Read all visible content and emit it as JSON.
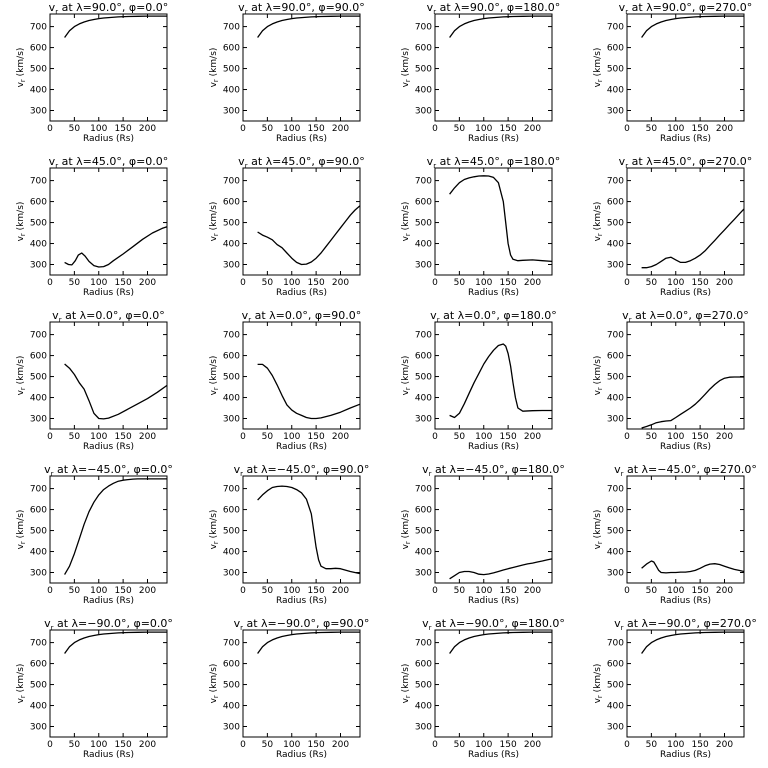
{
  "chart_data": [
    {
      "type": "line",
      "title": "v<sub>r</sub> at λ=90.0°, φ=0.0°",
      "title_parts": [
        "v",
        "r",
        " at λ=90.0°, φ=0.0°"
      ],
      "xlabel": "Radius (Rs)",
      "ylabel": "v_r (km/s)",
      "xlim": [
        0,
        240
      ],
      "ylim": [
        250,
        760
      ],
      "xticks": [
        0,
        50,
        100,
        150,
        200
      ],
      "yticks": [
        300,
        400,
        500,
        600,
        700
      ],
      "x": [
        30,
        40,
        50,
        60,
        70,
        80,
        90,
        100,
        110,
        120,
        140,
        160,
        180,
        200,
        220,
        240
      ],
      "y": [
        648,
        680,
        700,
        713,
        722,
        729,
        734,
        738,
        741,
        743,
        746,
        748,
        749,
        750,
        750,
        750
      ]
    },
    {
      "type": "line",
      "title_parts": [
        "v",
        "r",
        " at λ=90.0°, φ=90.0°"
      ],
      "xlabel": "Radius (Rs)",
      "ylabel": "v_r (km/s)",
      "xlim": [
        0,
        240
      ],
      "ylim": [
        250,
        760
      ],
      "xticks": [
        0,
        50,
        100,
        150,
        200
      ],
      "yticks": [
        300,
        400,
        500,
        600,
        700
      ],
      "x": [
        30,
        40,
        50,
        60,
        70,
        80,
        90,
        100,
        110,
        120,
        140,
        160,
        180,
        200,
        220,
        240
      ],
      "y": [
        648,
        680,
        700,
        713,
        722,
        729,
        734,
        738,
        741,
        743,
        746,
        748,
        749,
        750,
        750,
        750
      ]
    },
    {
      "type": "line",
      "title_parts": [
        "v",
        "r",
        " at λ=90.0°, φ=180.0°"
      ],
      "xlabel": "Radius (Rs)",
      "ylabel": "v_r (km/s)",
      "xlim": [
        0,
        240
      ],
      "ylim": [
        250,
        760
      ],
      "xticks": [
        0,
        50,
        100,
        150,
        200
      ],
      "yticks": [
        300,
        400,
        500,
        600,
        700
      ],
      "x": [
        30,
        40,
        50,
        60,
        70,
        80,
        90,
        100,
        110,
        120,
        140,
        160,
        180,
        200,
        220,
        240
      ],
      "y": [
        648,
        680,
        700,
        713,
        722,
        729,
        734,
        738,
        741,
        743,
        746,
        748,
        749,
        750,
        750,
        750
      ]
    },
    {
      "type": "line",
      "title_parts": [
        "v",
        "r",
        " at λ=90.0°, φ=270.0°"
      ],
      "xlabel": "Radius (Rs)",
      "ylabel": "v_r (km/s)",
      "xlim": [
        0,
        240
      ],
      "ylim": [
        250,
        760
      ],
      "xticks": [
        0,
        50,
        100,
        150,
        200
      ],
      "yticks": [
        300,
        400,
        500,
        600,
        700
      ],
      "x": [
        30,
        40,
        50,
        60,
        70,
        80,
        90,
        100,
        110,
        120,
        140,
        160,
        180,
        200,
        220,
        240
      ],
      "y": [
        648,
        680,
        700,
        713,
        722,
        729,
        734,
        738,
        741,
        743,
        746,
        748,
        749,
        750,
        750,
        750
      ]
    },
    {
      "type": "line",
      "title_parts": [
        "v",
        "r",
        " at λ=45.0°, φ=0.0°"
      ],
      "xlabel": "Radius (Rs)",
      "ylabel": "v_r (km/s)",
      "xlim": [
        0,
        240
      ],
      "ylim": [
        250,
        760
      ],
      "xticks": [
        0,
        50,
        100,
        150,
        200
      ],
      "yticks": [
        300,
        400,
        500,
        600,
        700
      ],
      "x": [
        30,
        38,
        45,
        52,
        58,
        65,
        72,
        80,
        90,
        100,
        110,
        120,
        130,
        150,
        170,
        190,
        210,
        230,
        240
      ],
      "y": [
        310,
        300,
        298,
        318,
        345,
        355,
        340,
        315,
        295,
        288,
        290,
        300,
        318,
        350,
        385,
        420,
        450,
        472,
        480
      ]
    },
    {
      "type": "line",
      "title_parts": [
        "v",
        "r",
        " at λ=45.0°, φ=90.0°"
      ],
      "xlabel": "Radius (Rs)",
      "ylabel": "v_r (km/s)",
      "xlim": [
        0,
        240
      ],
      "ylim": [
        250,
        760
      ],
      "xticks": [
        0,
        50,
        100,
        150,
        200
      ],
      "yticks": [
        300,
        400,
        500,
        600,
        700
      ],
      "x": [
        30,
        40,
        50,
        60,
        70,
        80,
        90,
        100,
        110,
        120,
        130,
        140,
        150,
        160,
        170,
        180,
        190,
        200,
        210,
        220,
        230,
        240
      ],
      "y": [
        455,
        440,
        430,
        418,
        395,
        380,
        355,
        330,
        310,
        300,
        302,
        312,
        330,
        355,
        385,
        415,
        445,
        475,
        505,
        535,
        560,
        580
      ]
    },
    {
      "type": "line",
      "title_parts": [
        "v",
        "r",
        " at λ=45.0°, φ=180.0°"
      ],
      "xlabel": "Radius (Rs)",
      "ylabel": "v_r (km/s)",
      "xlim": [
        0,
        240
      ],
      "ylim": [
        250,
        760
      ],
      "xticks": [
        0,
        50,
        100,
        150,
        200
      ],
      "yticks": [
        300,
        400,
        500,
        600,
        700
      ],
      "x": [
        30,
        40,
        50,
        60,
        70,
        80,
        90,
        100,
        110,
        120,
        130,
        140,
        145,
        150,
        155,
        160,
        170,
        180,
        200,
        220,
        240
      ],
      "y": [
        635,
        665,
        690,
        705,
        713,
        718,
        722,
        723,
        722,
        715,
        690,
        600,
        500,
        400,
        345,
        325,
        318,
        320,
        322,
        318,
        315
      ]
    },
    {
      "type": "line",
      "title_parts": [
        "v",
        "r",
        " at λ=45.0°, φ=270.0°"
      ],
      "xlabel": "Radius (Rs)",
      "ylabel": "v_r (km/s)",
      "xlim": [
        0,
        240
      ],
      "ylim": [
        250,
        760
      ],
      "xticks": [
        0,
        50,
        100,
        150,
        200
      ],
      "yticks": [
        300,
        400,
        500,
        600,
        700
      ],
      "x": [
        30,
        40,
        50,
        60,
        70,
        80,
        90,
        100,
        110,
        120,
        130,
        140,
        150,
        160,
        170,
        180,
        190,
        200,
        210,
        220,
        230,
        240
      ],
      "y": [
        285,
        285,
        290,
        300,
        315,
        330,
        335,
        322,
        310,
        310,
        318,
        330,
        345,
        365,
        390,
        415,
        440,
        465,
        490,
        515,
        540,
        565
      ]
    },
    {
      "type": "line",
      "title_parts": [
        "v",
        "r",
        " at λ=0.0°, φ=0.0°"
      ],
      "xlabel": "Radius (Rs)",
      "ylabel": "v_r (km/s)",
      "xlim": [
        0,
        240
      ],
      "ylim": [
        250,
        760
      ],
      "xticks": [
        0,
        50,
        100,
        150,
        200
      ],
      "yticks": [
        300,
        400,
        500,
        600,
        700
      ],
      "x": [
        30,
        40,
        50,
        60,
        70,
        80,
        90,
        100,
        110,
        120,
        140,
        160,
        180,
        200,
        220,
        240
      ],
      "y": [
        560,
        540,
        510,
        470,
        440,
        385,
        325,
        300,
        298,
        302,
        320,
        345,
        370,
        395,
        425,
        458
      ]
    },
    {
      "type": "line",
      "title_parts": [
        "v",
        "r",
        " at λ=0.0°, φ=90.0°"
      ],
      "xlabel": "Radius (Rs)",
      "ylabel": "v_r (km/s)",
      "xlim": [
        0,
        240
      ],
      "ylim": [
        250,
        760
      ],
      "xticks": [
        0,
        50,
        100,
        150,
        200
      ],
      "yticks": [
        300,
        400,
        500,
        600,
        700
      ],
      "x": [
        30,
        40,
        50,
        60,
        70,
        80,
        90,
        100,
        110,
        120,
        130,
        140,
        150,
        160,
        180,
        200,
        220,
        240
      ],
      "y": [
        558,
        558,
        540,
        505,
        460,
        410,
        365,
        340,
        325,
        315,
        305,
        300,
        300,
        303,
        315,
        330,
        350,
        368
      ]
    },
    {
      "type": "line",
      "title_parts": [
        "v",
        "r",
        " at λ=0.0°, φ=180.0°"
      ],
      "xlabel": "Radius (Rs)",
      "ylabel": "v_r (km/s)",
      "xlim": [
        0,
        240
      ],
      "ylim": [
        250,
        760
      ],
      "xticks": [
        0,
        50,
        100,
        150,
        200
      ],
      "yticks": [
        300,
        400,
        500,
        600,
        700
      ],
      "x": [
        30,
        40,
        50,
        60,
        70,
        80,
        90,
        100,
        110,
        120,
        130,
        140,
        145,
        150,
        155,
        160,
        165,
        170,
        180,
        200,
        220,
        240
      ],
      "y": [
        315,
        305,
        325,
        370,
        420,
        470,
        515,
        560,
        595,
        625,
        648,
        655,
        645,
        610,
        550,
        470,
        400,
        350,
        335,
        337,
        338,
        338
      ]
    },
    {
      "type": "line",
      "title_parts": [
        "v",
        "r",
        " at λ=0.0°, φ=270.0°"
      ],
      "xlabel": "Radius (Rs)",
      "ylabel": "v_r (km/s)",
      "xlim": [
        0,
        240
      ],
      "ylim": [
        250,
        760
      ],
      "xticks": [
        0,
        50,
        100,
        150,
        200
      ],
      "yticks": [
        300,
        400,
        500,
        600,
        700
      ],
      "x": [
        30,
        40,
        50,
        60,
        70,
        80,
        90,
        100,
        110,
        120,
        130,
        140,
        150,
        160,
        170,
        180,
        190,
        200,
        210,
        220,
        230,
        240
      ],
      "y": [
        255,
        262,
        270,
        280,
        285,
        288,
        290,
        305,
        320,
        335,
        350,
        368,
        390,
        415,
        440,
        462,
        480,
        492,
        497,
        498,
        498,
        498
      ]
    },
    {
      "type": "line",
      "title_parts": [
        "v",
        "r",
        " at λ=−45.0°, φ=0.0°"
      ],
      "xlabel": "Radius (Rs)",
      "ylabel": "v_r (km/s)",
      "xlim": [
        0,
        240
      ],
      "ylim": [
        250,
        760
      ],
      "xticks": [
        0,
        50,
        100,
        150,
        200
      ],
      "yticks": [
        300,
        400,
        500,
        600,
        700
      ],
      "x": [
        30,
        40,
        50,
        60,
        70,
        80,
        90,
        100,
        110,
        120,
        130,
        140,
        150,
        160,
        170,
        180,
        200,
        220,
        240
      ],
      "y": [
        290,
        330,
        390,
        460,
        530,
        590,
        635,
        670,
        695,
        712,
        725,
        735,
        740,
        743,
        745,
        746,
        746,
        746,
        746
      ]
    },
    {
      "type": "line",
      "title_parts": [
        "v",
        "r",
        " at λ=−45.0°, φ=90.0°"
      ],
      "xlabel": "Radius (Rs)",
      "ylabel": "v_r (km/s)",
      "xlim": [
        0,
        240
      ],
      "ylim": [
        250,
        760
      ],
      "xticks": [
        0,
        50,
        100,
        150,
        200
      ],
      "yticks": [
        300,
        400,
        500,
        600,
        700
      ],
      "x": [
        30,
        40,
        50,
        60,
        70,
        80,
        90,
        100,
        110,
        120,
        130,
        140,
        145,
        150,
        155,
        160,
        170,
        180,
        190,
        200,
        220,
        240
      ],
      "y": [
        645,
        670,
        690,
        705,
        710,
        712,
        710,
        705,
        695,
        680,
        650,
        580,
        500,
        420,
        360,
        330,
        318,
        318,
        320,
        318,
        305,
        295
      ]
    },
    {
      "type": "line",
      "title_parts": [
        "v",
        "r",
        " at λ=−45.0°, φ=180.0°"
      ],
      "xlabel": "Radius (Rs)",
      "ylabel": "v_r (km/s)",
      "xlim": [
        0,
        240
      ],
      "ylim": [
        250,
        760
      ],
      "xticks": [
        0,
        50,
        100,
        150,
        200
      ],
      "yticks": [
        300,
        400,
        500,
        600,
        700
      ],
      "x": [
        30,
        40,
        50,
        60,
        70,
        80,
        90,
        100,
        110,
        120,
        130,
        140,
        150,
        160,
        170,
        180,
        190,
        200,
        210,
        220,
        230,
        240
      ],
      "y": [
        270,
        285,
        300,
        305,
        305,
        300,
        292,
        290,
        293,
        298,
        305,
        312,
        318,
        324,
        330,
        336,
        341,
        345,
        350,
        355,
        360,
        365
      ]
    },
    {
      "type": "line",
      "title_parts": [
        "v",
        "r",
        " at λ=−45.0°, φ=270.0°"
      ],
      "xlabel": "Radius (Rs)",
      "ylabel": "v_r (km/s)",
      "xlim": [
        0,
        240
      ],
      "ylim": [
        250,
        760
      ],
      "xticks": [
        0,
        50,
        100,
        150,
        200
      ],
      "yticks": [
        300,
        400,
        500,
        600,
        700
      ],
      "x": [
        30,
        40,
        50,
        55,
        60,
        65,
        70,
        80,
        90,
        100,
        110,
        120,
        130,
        140,
        150,
        160,
        170,
        180,
        190,
        200,
        210,
        220,
        230,
        240
      ],
      "y": [
        320,
        340,
        355,
        350,
        330,
        310,
        300,
        298,
        300,
        300,
        302,
        302,
        305,
        310,
        320,
        332,
        340,
        342,
        338,
        330,
        322,
        315,
        310,
        305
      ]
    },
    {
      "type": "line",
      "title_parts": [
        "v",
        "r",
        " at λ=−90.0°, φ=0.0°"
      ],
      "xlabel": "Radius (Rs)",
      "ylabel": "v_r (km/s)",
      "xlim": [
        0,
        240
      ],
      "ylim": [
        250,
        760
      ],
      "xticks": [
        0,
        50,
        100,
        150,
        200
      ],
      "yticks": [
        300,
        400,
        500,
        600,
        700
      ],
      "x": [
        30,
        40,
        50,
        60,
        70,
        80,
        90,
        100,
        110,
        120,
        140,
        160,
        180,
        200,
        220,
        240
      ],
      "y": [
        648,
        680,
        700,
        713,
        722,
        729,
        734,
        738,
        741,
        743,
        746,
        748,
        749,
        750,
        750,
        750
      ]
    },
    {
      "type": "line",
      "title_parts": [
        "v",
        "r",
        " at λ=−90.0°, φ=90.0°"
      ],
      "xlabel": "Radius (Rs)",
      "ylabel": "v_r (km/s)",
      "xlim": [
        0,
        240
      ],
      "ylim": [
        250,
        760
      ],
      "xticks": [
        0,
        50,
        100,
        150,
        200
      ],
      "yticks": [
        300,
        400,
        500,
        600,
        700
      ],
      "x": [
        30,
        40,
        50,
        60,
        70,
        80,
        90,
        100,
        110,
        120,
        140,
        160,
        180,
        200,
        220,
        240
      ],
      "y": [
        648,
        680,
        700,
        713,
        722,
        729,
        734,
        738,
        741,
        743,
        746,
        748,
        749,
        750,
        750,
        750
      ]
    },
    {
      "type": "line",
      "title_parts": [
        "v",
        "r",
        " at λ=−90.0°, φ=180.0°"
      ],
      "xlabel": "Radius (Rs)",
      "ylabel": "v_r (km/s)",
      "xlim": [
        0,
        240
      ],
      "ylim": [
        250,
        760
      ],
      "xticks": [
        0,
        50,
        100,
        150,
        200
      ],
      "yticks": [
        300,
        400,
        500,
        600,
        700
      ],
      "x": [
        30,
        40,
        50,
        60,
        70,
        80,
        90,
        100,
        110,
        120,
        140,
        160,
        180,
        200,
        220,
        240
      ],
      "y": [
        648,
        680,
        700,
        713,
        722,
        729,
        734,
        738,
        741,
        743,
        746,
        748,
        749,
        750,
        750,
        750
      ]
    },
    {
      "type": "line",
      "title_parts": [
        "v",
        "r",
        " at λ=−90.0°, φ=270.0°"
      ],
      "xlabel": "Radius (Rs)",
      "ylabel": "v_r (km/s)",
      "xlim": [
        0,
        240
      ],
      "ylim": [
        250,
        760
      ],
      "xticks": [
        0,
        50,
        100,
        150,
        200
      ],
      "yticks": [
        300,
        400,
        500,
        600,
        700
      ],
      "x": [
        30,
        40,
        50,
        60,
        70,
        80,
        90,
        100,
        110,
        120,
        140,
        160,
        180,
        200,
        220,
        240
      ],
      "y": [
        648,
        680,
        700,
        713,
        722,
        729,
        734,
        738,
        741,
        743,
        746,
        748,
        749,
        750,
        750,
        750
      ]
    }
  ]
}
